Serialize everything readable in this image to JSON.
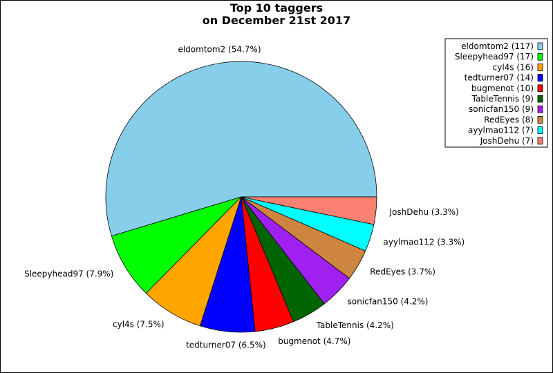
{
  "chart_data": {
    "type": "pie",
    "title_lines": [
      "Top 10 taggers",
      "on December 21st 2017"
    ],
    "categories": [
      "eldomtom2",
      "Sleepyhead97",
      "cyl4s",
      "tedturner07",
      "bugmenot",
      "TableTennis",
      "sonicfan150",
      "RedEyes",
      "ayylmao112",
      "JoshDehu"
    ],
    "values": [
      117,
      17,
      16,
      14,
      10,
      9,
      9,
      8,
      7,
      7
    ],
    "slice_labels": [
      "eldomtom2 (54.7%)",
      "Sleepyhead97 (7.9%)",
      "cyl4s (7.5%)",
      "tedturner07 (6.5%)",
      "bugmenot (4.7%)",
      "TableTennis (4.2%)",
      "sonicfan150 (4.2%)",
      "RedEyes (3.7%)",
      "ayylmao112 (3.3%)",
      "JoshDehu (3.3%)"
    ],
    "legend_entries": [
      "eldomtom2 (117)",
      "Sleepyhead97 (17)",
      "cyl4s (16)",
      "tedturner07 (14)",
      "bugmenot (10)",
      "TableTennis (9)",
      "sonicfan150 (9)",
      "RedEyes (8)",
      "ayylmao112 (7)",
      "JoshDehu (7)"
    ],
    "colors": [
      "#87ceeb",
      "#00ff00",
      "#ffa500",
      "#0000ff",
      "#ff0000",
      "#006400",
      "#a020f0",
      "#cd853f",
      "#00ffff",
      "#fa8072"
    ],
    "legend_placement": "top-right",
    "start_angle_deg": 0,
    "direction": "counterclockwise",
    "grid": false
  }
}
